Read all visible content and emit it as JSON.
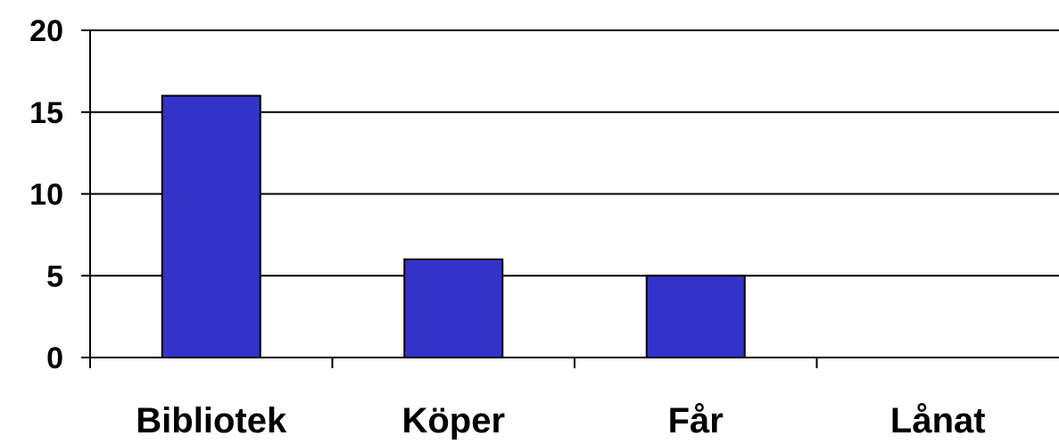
{
  "chart_data": {
    "type": "bar",
    "categories": [
      "Bibliotek",
      "Köper",
      "Får",
      "Lånat"
    ],
    "values": [
      16,
      6,
      5,
      0
    ],
    "yticks": [
      "0",
      "5",
      "10",
      "15",
      "20"
    ],
    "ylim": [
      0,
      20
    ],
    "grid": true,
    "legend": "none",
    "bar_color": "#3333cc",
    "title": "",
    "xlabel": "",
    "ylabel": ""
  }
}
